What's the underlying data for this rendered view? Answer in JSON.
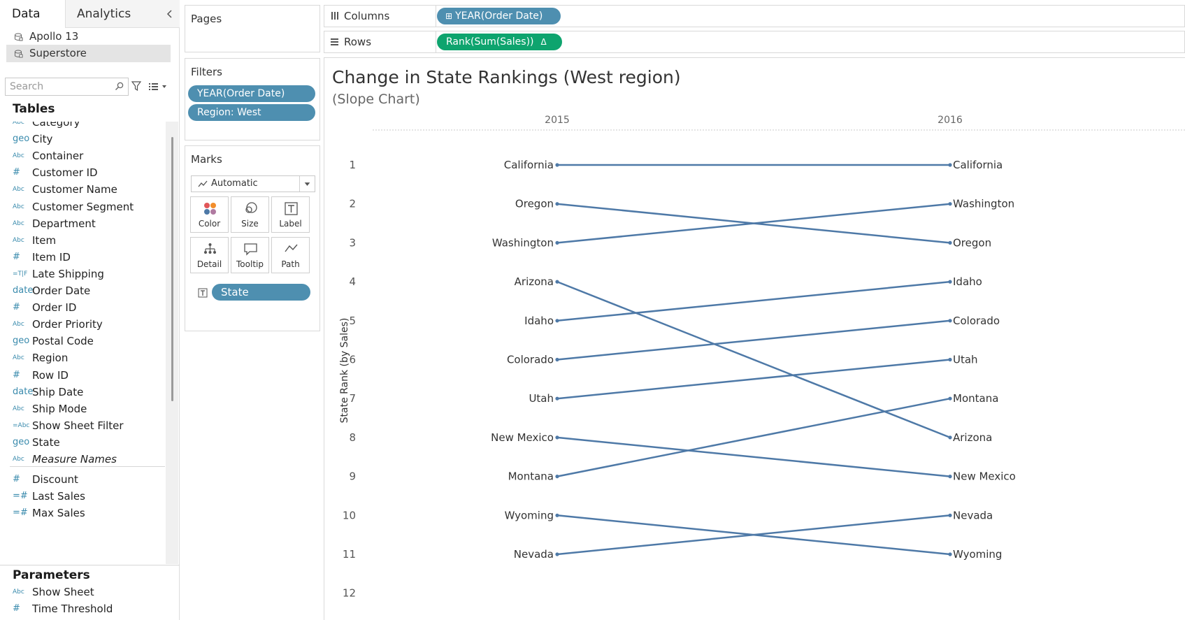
{
  "tabs": {
    "data": "Data",
    "analytics": "Analytics"
  },
  "datasources": [
    "Apollo 13",
    "Superstore"
  ],
  "search": {
    "placeholder": "Search"
  },
  "tables_heading": "Tables",
  "fields": [
    {
      "type": "Abc",
      "name": "Category"
    },
    {
      "type": "geo",
      "name": "City"
    },
    {
      "type": "Abc",
      "name": "Container"
    },
    {
      "type": "#",
      "name": "Customer ID"
    },
    {
      "type": "Abc",
      "name": "Customer Name"
    },
    {
      "type": "Abc",
      "name": "Customer Segment"
    },
    {
      "type": "Abc",
      "name": "Department"
    },
    {
      "type": "Abc",
      "name": "Item"
    },
    {
      "type": "#",
      "name": "Item ID"
    },
    {
      "type": "=T|F",
      "name": "Late Shipping"
    },
    {
      "type": "date",
      "name": "Order Date"
    },
    {
      "type": "#",
      "name": "Order ID"
    },
    {
      "type": "Abc",
      "name": "Order Priority"
    },
    {
      "type": "geo",
      "name": "Postal Code"
    },
    {
      "type": "Abc",
      "name": "Region"
    },
    {
      "type": "#",
      "name": "Row ID"
    },
    {
      "type": "date",
      "name": "Ship Date"
    },
    {
      "type": "Abc",
      "name": "Ship Mode"
    },
    {
      "type": "=Abc",
      "name": "Show Sheet Filter"
    },
    {
      "type": "geo",
      "name": "State"
    },
    {
      "type": "Abc",
      "name": "Measure Names",
      "italic": true
    }
  ],
  "measures": [
    {
      "type": "#",
      "name": "Discount"
    },
    {
      "type": "=#",
      "name": "Last Sales"
    },
    {
      "type": "=#",
      "name": "Max Sales"
    }
  ],
  "parameters_heading": "Parameters",
  "parameters": [
    {
      "type": "Abc",
      "name": "Show Sheet"
    },
    {
      "type": "#",
      "name": "Time Threshold"
    }
  ],
  "pages": {
    "title": "Pages"
  },
  "filters": {
    "title": "Filters",
    "pills": [
      "YEAR(Order Date)",
      "Region: West"
    ]
  },
  "marks": {
    "title": "Marks",
    "type": "Automatic",
    "buttons": [
      "Color",
      "Size",
      "Label",
      "Detail",
      "Tooltip",
      "Path"
    ],
    "pill": "State"
  },
  "columns": {
    "label": "Columns",
    "pill": "YEAR(Order Date)",
    "pill_prefix": "⊞"
  },
  "rows": {
    "label": "Rows",
    "pill": "Rank(Sum(Sales))",
    "pill_suffix": "Δ"
  },
  "colors": {
    "line": "#4e79a7",
    "pill_blue": "#4e8fb0",
    "pill_green": "#0ea46e"
  },
  "chart_data": {
    "type": "line",
    "title": "Change in State Rankings (West region)",
    "subtitle": "(Slope Chart)",
    "ylabel": "State Rank (by Sales)",
    "ylim": [
      1,
      12
    ],
    "yticks": [
      1,
      2,
      3,
      4,
      5,
      6,
      7,
      8,
      9,
      10,
      11,
      12
    ],
    "y_reversed": true,
    "x": [
      "2015",
      "2016"
    ],
    "series": [
      {
        "name": "California",
        "values": [
          1,
          1
        ]
      },
      {
        "name": "Oregon",
        "values": [
          2,
          3
        ]
      },
      {
        "name": "Washington",
        "values": [
          3,
          2
        ]
      },
      {
        "name": "Arizona",
        "values": [
          4,
          8
        ]
      },
      {
        "name": "Idaho",
        "values": [
          5,
          4
        ]
      },
      {
        "name": "Colorado",
        "values": [
          6,
          5
        ]
      },
      {
        "name": "Utah",
        "values": [
          7,
          6
        ]
      },
      {
        "name": "New Mexico",
        "values": [
          8,
          9
        ]
      },
      {
        "name": "Montana",
        "values": [
          9,
          7
        ]
      },
      {
        "name": "Wyoming",
        "values": [
          10,
          11
        ]
      },
      {
        "name": "Nevada",
        "values": [
          11,
          10
        ]
      }
    ]
  }
}
